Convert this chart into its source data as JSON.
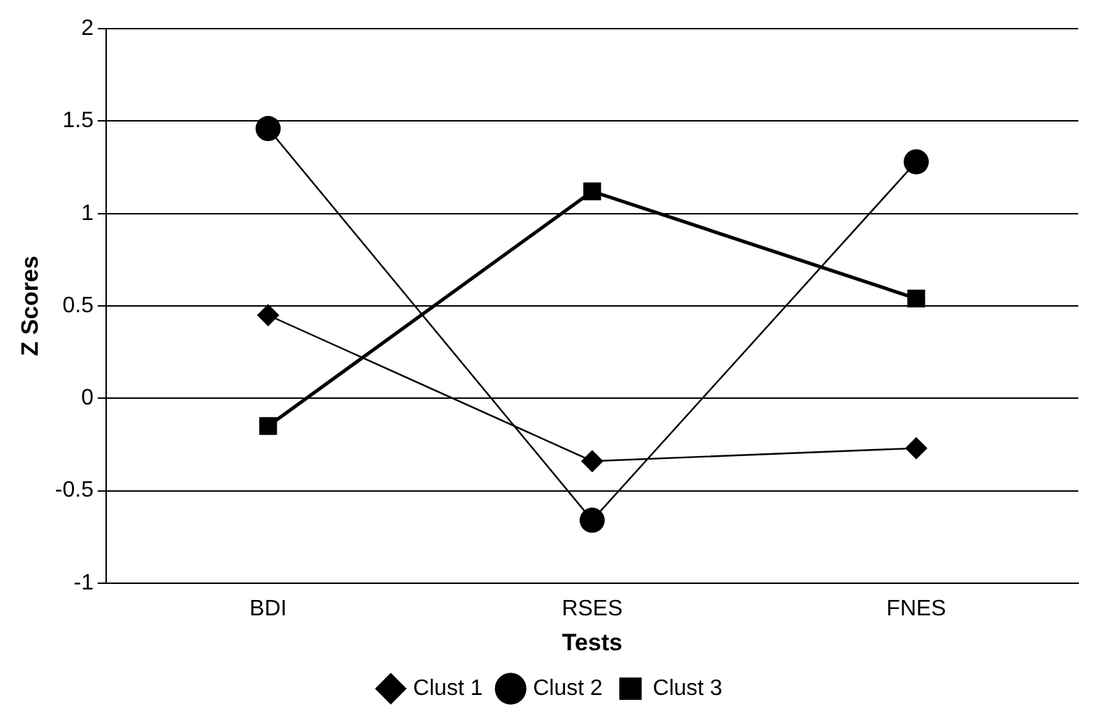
{
  "chart_data": {
    "type": "line",
    "xlabel": "Tests",
    "ylabel": "Z Scores",
    "categories": [
      "BDI",
      "RSES",
      "FNES"
    ],
    "series": [
      {
        "name": "Clust 1",
        "color": "#000000",
        "marker": "diamond",
        "values": [
          0.45,
          -0.34,
          -0.27
        ]
      },
      {
        "name": "Clust 2",
        "color": "#000000",
        "marker": "circle",
        "values": [
          1.46,
          -0.66,
          1.28
        ]
      },
      {
        "name": "Clust 3",
        "color": "#000000",
        "marker": "square",
        "values": [
          -0.15,
          1.12,
          0.54
        ]
      }
    ],
    "ylim": [
      -1,
      2
    ],
    "yticks": [
      -1,
      -0.5,
      0,
      0.5,
      1,
      1.5,
      2
    ],
    "grid": "y",
    "legend": "bottom",
    "line_style": "solid"
  }
}
